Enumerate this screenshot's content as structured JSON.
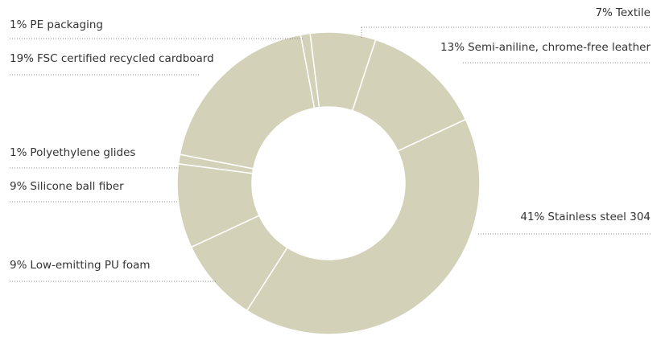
{
  "chart_data": {
    "type": "donut",
    "categories": [
      "Textile",
      "Semi-aniline, chrome-free leather",
      "Stainless steel 304",
      "Low-emitting PU foam",
      "Silicone ball fiber",
      "Polyethylene glides",
      "FSC certified recycled cardboard",
      "PE packaging"
    ],
    "values": [
      7,
      13,
      41,
      9,
      9,
      1,
      19,
      1
    ],
    "value_labels": [
      "7%",
      "13%",
      "41%",
      "9%",
      "9%",
      "1%",
      "19%",
      "1%"
    ],
    "color": "#d4d1b9"
  }
}
